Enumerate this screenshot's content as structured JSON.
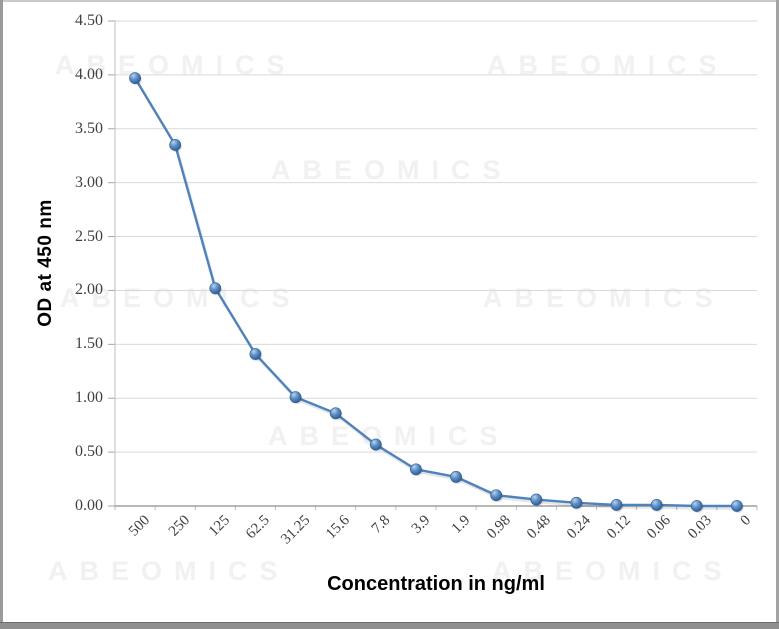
{
  "watermark": {
    "text": "ABEOMICS",
    "color": "#f1f0f2"
  },
  "colors": {
    "line": "#4f81bd",
    "marker_highlight": "#b9d2ee",
    "marker_mid": "#5b8ec6",
    "marker_dark": "#2a568b",
    "grid": "#d9d9d9",
    "y_axis_line": "#bfbfbf",
    "x_axis_line": "#8c8c8c",
    "tick_mark": "#a6a6a6",
    "tick_text": "#404040",
    "frame_bottom_bar": "#8f8f8f"
  },
  "chart_data": {
    "type": "line",
    "title": "",
    "xlabel": "Concentration in ng/ml",
    "ylabel": "OD  at 450 nm",
    "categories": [
      "500",
      "250",
      "125",
      "62.5",
      "31.25",
      "15.6",
      "7.8",
      "3.9",
      "1.9",
      "0.98",
      "0.48",
      "0.24",
      "0.12",
      "0.06",
      "0.03",
      "0"
    ],
    "values": [
      3.97,
      3.35,
      2.02,
      1.41,
      1.01,
      0.86,
      0.57,
      0.34,
      0.27,
      0.1,
      0.06,
      0.03,
      0.01,
      0.01,
      0.0,
      0.0
    ],
    "series_name": "",
    "ylim": [
      0.0,
      4.5
    ],
    "ytick_step": 0.5,
    "ytick_labels": [
      "0.00",
      "0.50",
      "1.00",
      "1.50",
      "2.00",
      "2.50",
      "3.00",
      "3.50",
      "4.00",
      "4.50"
    ],
    "grid": true,
    "legend": false,
    "marker": "circle-3d"
  }
}
